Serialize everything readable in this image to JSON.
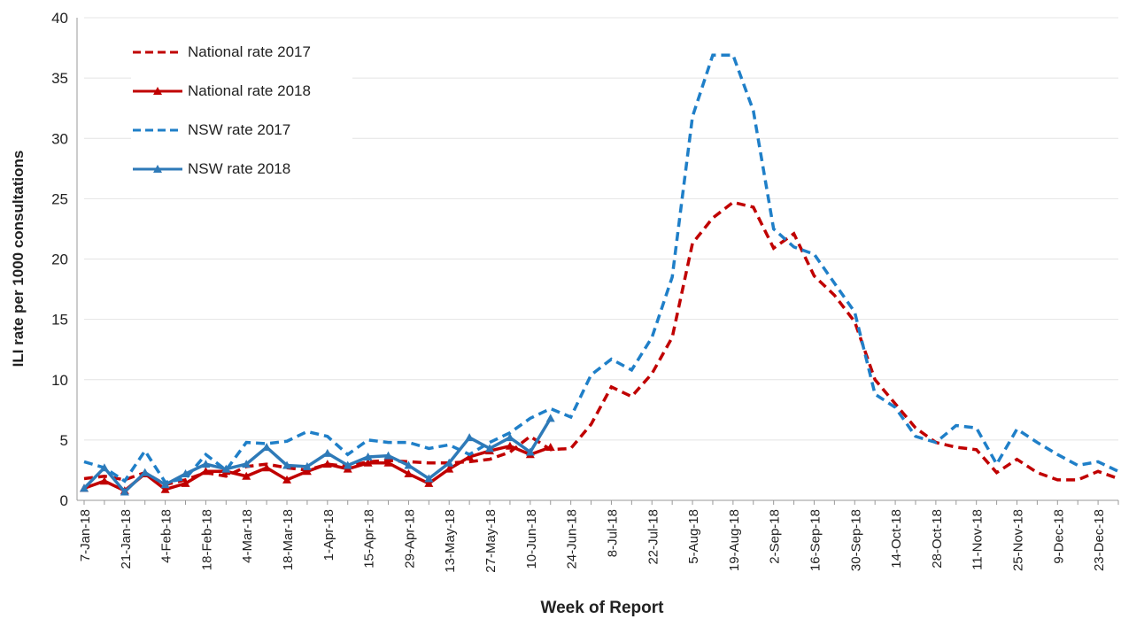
{
  "chart_data": {
    "type": "line",
    "x_label": "Week of Report",
    "y_label": "ILI rate per 1000 consultations",
    "categories": [
      "7-Jan-18",
      null,
      "21-Jan-18",
      null,
      "4-Feb-18",
      null,
      "18-Feb-18",
      null,
      "4-Mar-18",
      null,
      "18-Mar-18",
      null,
      "1-Apr-18",
      null,
      "15-Apr-18",
      null,
      "29-Apr-18",
      null,
      "13-May-18",
      null,
      "27-May-18",
      null,
      "10-Jun-18",
      null,
      "24-Jun-18",
      null,
      "8-Jul-18",
      null,
      "22-Jul-18",
      null,
      "5-Aug-18",
      null,
      "19-Aug-18",
      null,
      "2-Sep-18",
      null,
      "16-Sep-18",
      null,
      "30-Sep-18",
      null,
      "14-Oct-18",
      null,
      "28-Oct-18",
      null,
      "11-Nov-18",
      null,
      "25-Nov-18",
      null,
      "9-Dec-18",
      null,
      "23-Dec-18",
      null
    ],
    "ylim": [
      0,
      40
    ],
    "yticks": [
      0,
      5,
      10,
      15,
      20,
      25,
      30,
      35,
      40
    ],
    "grid": true,
    "series": [
      {
        "name": "National rate 2017",
        "color": "#c00000",
        "dash": true,
        "marker": false,
        "values": [
          1.8,
          2.0,
          1.7,
          2.3,
          1.3,
          1.7,
          2.3,
          2.0,
          2.8,
          3.0,
          2.7,
          2.5,
          3.0,
          2.8,
          3.2,
          3.3,
          3.2,
          3.1,
          3.1,
          3.2,
          3.4,
          4.0,
          5.3,
          4.2,
          4.3,
          6.3,
          9.4,
          8.6,
          10.5,
          13.5,
          21.3,
          23.4,
          24.7,
          24.3,
          20.9,
          22.1,
          18.6,
          17.0,
          14.8,
          10.0,
          8.0,
          6.0,
          4.8,
          4.4,
          4.2,
          2.3,
          3.4,
          2.3,
          1.7,
          1.7,
          2.4,
          1.8
        ]
      },
      {
        "name": "National rate 2018",
        "color": "#c00000",
        "dash": false,
        "marker": true,
        "values": [
          1.0,
          1.6,
          0.8,
          2.2,
          0.9,
          1.4,
          2.4,
          2.4,
          2.0,
          2.7,
          1.7,
          2.4,
          3.0,
          2.6,
          3.1,
          3.1,
          2.2,
          1.4,
          2.6,
          3.6,
          4.1,
          4.5,
          3.8,
          4.4,
          null,
          null,
          null,
          null,
          null,
          null,
          null,
          null,
          null,
          null,
          null,
          null,
          null,
          null,
          null,
          null,
          null,
          null,
          null,
          null,
          null,
          null,
          null,
          null,
          null,
          null,
          null,
          null
        ]
      },
      {
        "name": "NSW rate 2017",
        "color": "#1f7fc8",
        "dash": true,
        "marker": false,
        "values": [
          3.2,
          2.7,
          1.6,
          4.1,
          1.5,
          1.8,
          3.8,
          2.5,
          4.8,
          4.7,
          4.9,
          5.7,
          5.3,
          3.8,
          5.0,
          4.8,
          4.8,
          4.3,
          4.6,
          3.8,
          4.8,
          5.6,
          6.8,
          7.6,
          6.9,
          10.4,
          11.7,
          10.8,
          13.5,
          18.5,
          31.8,
          36.9,
          36.9,
          32.3,
          22.5,
          21.0,
          20.4,
          18.0,
          15.6,
          8.8,
          7.7,
          5.3,
          4.8,
          6.2,
          6.0,
          3.0,
          5.9,
          4.8,
          3.8,
          2.9,
          3.2,
          2.4
        ]
      },
      {
        "name": "NSW rate 2018",
        "color": "#2e7ab8",
        "dash": false,
        "marker": true,
        "values": [
          1.0,
          2.7,
          0.7,
          2.3,
          1.3,
          2.2,
          3.0,
          2.6,
          3.0,
          4.4,
          2.9,
          2.8,
          3.9,
          2.9,
          3.6,
          3.7,
          2.9,
          1.8,
          3.1,
          5.2,
          4.3,
          5.2,
          4.0,
          6.8,
          null,
          null,
          null,
          null,
          null,
          null,
          null,
          null,
          null,
          null,
          null,
          null,
          null,
          null,
          null,
          null,
          null,
          null,
          null,
          null,
          null,
          null,
          null,
          null,
          null,
          null,
          null,
          null
        ]
      }
    ]
  }
}
